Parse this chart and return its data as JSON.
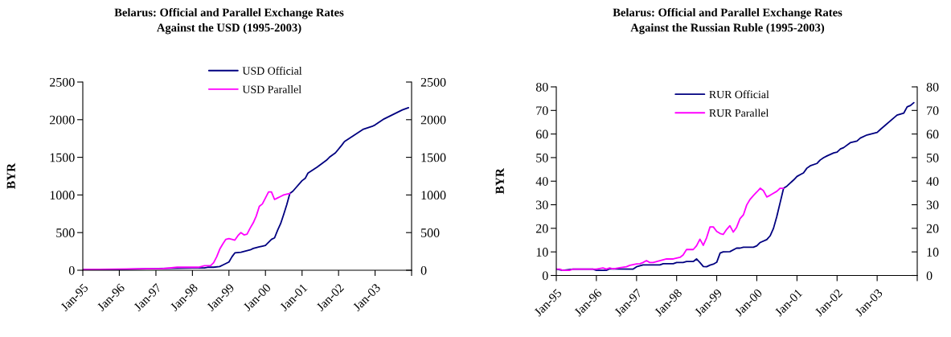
{
  "chart_data": [
    {
      "type": "line",
      "title": "Belarus: Official and Parallel Exchange Rates\nAgainst the USD (1995-2003)",
      "ylabel": "BYR",
      "legend": "top",
      "xlim": [
        "1995-01",
        "2004-01"
      ],
      "xticks": [
        {
          "value": "1995-01",
          "label": "Jan-95"
        },
        {
          "value": "1996-01",
          "label": "Jan-96"
        },
        {
          "value": "1997-01",
          "label": "Jan-97"
        },
        {
          "value": "1998-01",
          "label": "Jan-98"
        },
        {
          "value": "1999-01",
          "label": "Jan-99"
        },
        {
          "value": "2000-01",
          "label": "Jan-00"
        },
        {
          "value": "2001-01",
          "label": "Jan-01"
        },
        {
          "value": "2002-01",
          "label": "Jan-02"
        },
        {
          "value": "2003-01",
          "label": "Jan-03"
        },
        {
          "value": "2004-01",
          "label": null
        }
      ],
      "ylim": [
        0,
        2500
      ],
      "yticks": [
        0,
        500,
        1000,
        1500,
        2000,
        2500
      ],
      "y2lim": [
        0,
        2500
      ],
      "y2ticks": [
        0,
        500,
        1000,
        1500,
        2000,
        2500
      ],
      "series": [
        {
          "name": "USD Official",
          "color": "#000080",
          "x": [
            "1995-01",
            "1996-01",
            "1996-10",
            "1998-01",
            "1998-05",
            "1998-06",
            "1998-08",
            "1998-10",
            "1998-11",
            "1999-01",
            "1999-02",
            "1999-03",
            "1999-05",
            "1999-08",
            "1999-09",
            "1999-11",
            "1999-12",
            "2000-01",
            "2000-03",
            "2000-04",
            "2000-05",
            "2000-06",
            "2000-07",
            "2000-08",
            "2000-09",
            "2000-10",
            "2001-01",
            "2001-02",
            "2001-03",
            "2001-06",
            "2001-09",
            "2001-10",
            "2001-12",
            "2002-02",
            "2002-03",
            "2002-06",
            "2002-09",
            "2002-12",
            "2003-01",
            "2003-04",
            "2003-06",
            "2003-08",
            "2003-10",
            "2003-12"
          ],
          "values": [
            10,
            10,
            20,
            30,
            30,
            40,
            40,
            50,
            70,
            110,
            180,
            230,
            240,
            270,
            290,
            310,
            320,
            330,
            410,
            430,
            530,
            620,
            740,
            870,
            1020,
            1050,
            1190,
            1220,
            1290,
            1370,
            1460,
            1500,
            1560,
            1660,
            1710,
            1790,
            1870,
            1910,
            1930,
            2010,
            2050,
            2090,
            2130,
            2160
          ]
        },
        {
          "name": "USD Parallel",
          "color": "#ff00ff",
          "x": [
            "1995-01",
            "1996-10",
            "1997-03",
            "1997-08",
            "1998-03",
            "1998-05",
            "1998-07",
            "1998-08",
            "1998-09",
            "1998-10",
            "1998-11",
            "1998-12",
            "1999-01",
            "1999-02",
            "1999-03",
            "1999-04",
            "1999-05",
            "1999-06",
            "1999-07",
            "1999-08",
            "1999-09",
            "1999-10",
            "1999-11",
            "1999-12",
            "2000-01",
            "2000-02",
            "2000-03",
            "2000-04",
            "2000-05",
            "2000-06",
            "2000-07",
            "2000-08",
            "2000-09"
          ],
          "values": [
            10,
            20,
            20,
            40,
            40,
            60,
            60,
            100,
            180,
            280,
            350,
            410,
            420,
            410,
            400,
            460,
            500,
            470,
            480,
            560,
            630,
            720,
            850,
            880,
            960,
            1040,
            1040,
            940,
            960,
            980,
            1000,
            1010,
            1020
          ]
        }
      ]
    },
    {
      "type": "line",
      "title": "Belarus: Official and Parallel Exchange Rates\nAgainst the Russian Ruble (1995-2003)",
      "ylabel": "BYR",
      "legend": "top",
      "xlim": [
        "1995-01",
        "2004-01"
      ],
      "xticks": [
        {
          "value": "1995-01",
          "label": "Jan-95"
        },
        {
          "value": "1996-01",
          "label": "Jan-96"
        },
        {
          "value": "1997-01",
          "label": "Jan-97"
        },
        {
          "value": "1998-01",
          "label": "Jan-98"
        },
        {
          "value": "1999-01",
          "label": "Jan-99"
        },
        {
          "value": "2000-01",
          "label": "Jan-00"
        },
        {
          "value": "2001-01",
          "label": "Jan-01"
        },
        {
          "value": "2002-01",
          "label": "Jan-02"
        },
        {
          "value": "2003-01",
          "label": "Jan-03"
        },
        {
          "value": "2004-01",
          "label": null
        }
      ],
      "ylim": [
        0,
        80
      ],
      "yticks": [
        0,
        10,
        20,
        30,
        40,
        50,
        60,
        70,
        80
      ],
      "y2lim": [
        0,
        80
      ],
      "y2ticks": [
        0,
        10,
        20,
        30,
        40,
        50,
        60,
        70,
        80
      ],
      "series": [
        {
          "name": "RUR Official",
          "color": "#000080",
          "x": [
            "1995-01",
            "1995-03",
            "1995-06",
            "1995-12",
            "1996-01",
            "1996-04",
            "1996-05",
            "1996-12",
            "1997-01",
            "1997-03",
            "1997-08",
            "1997-09",
            "1997-12",
            "1998-01",
            "1998-03",
            "1998-04",
            "1998-06",
            "1998-07",
            "1998-08",
            "1998-09",
            "1998-10",
            "1998-11",
            "1998-12",
            "1999-01",
            "1999-02",
            "1999-03",
            "1999-05",
            "1999-07",
            "1999-08",
            "1999-09",
            "1999-12",
            "2000-01",
            "2000-02",
            "2000-04",
            "2000-05",
            "2000-06",
            "2000-07",
            "2000-08",
            "2000-09",
            "2000-10",
            "2000-12",
            "2001-01",
            "2001-02",
            "2001-03",
            "2001-04",
            "2001-05",
            "2001-07",
            "2001-08",
            "2001-09",
            "2001-10",
            "2001-12",
            "2002-01",
            "2002-02",
            "2002-03",
            "2002-05",
            "2002-07",
            "2002-08",
            "2002-10",
            "2003-01",
            "2003-02",
            "2003-07",
            "2003-09",
            "2003-10",
            "2003-11",
            "2003-12"
          ],
          "values": [
            2.7,
            2.2,
            2.7,
            2.7,
            2.2,
            2.2,
            2.8,
            2.7,
            3.7,
            4.5,
            4.5,
            5.0,
            5.0,
            5.5,
            5.5,
            5.9,
            5.9,
            7.0,
            5.5,
            3.8,
            3.7,
            4.4,
            4.8,
            5.6,
            9.5,
            10.0,
            10.1,
            11.6,
            11.6,
            12.0,
            12.0,
            12.6,
            14.0,
            15.2,
            16.8,
            20.0,
            25.0,
            31.0,
            37.0,
            37.9,
            40.5,
            42.0,
            42.8,
            43.5,
            45.5,
            46.5,
            47.5,
            49.0,
            50.0,
            50.7,
            52.0,
            52.3,
            53.7,
            54.2,
            56.3,
            57.0,
            58.3,
            59.6,
            60.7,
            62.0,
            68.0,
            68.9,
            71.5,
            72.1,
            73.3
          ]
        },
        {
          "name": "RUR Parallel",
          "color": "#ff00ff",
          "x": [
            "1995-01",
            "1995-02",
            "1995-03",
            "1995-05",
            "1995-06",
            "1996-01",
            "1996-03",
            "1996-04",
            "1996-05",
            "1996-06",
            "1996-08",
            "1996-10",
            "1996-11",
            "1997-01",
            "1997-02",
            "1997-03",
            "1997-04",
            "1997-05",
            "1997-06",
            "1997-10",
            "1997-12",
            "1998-02",
            "1998-03",
            "1998-04",
            "1998-06",
            "1998-07",
            "1998-08",
            "1998-09",
            "1998-10",
            "1998-11",
            "1998-12",
            "1999-01",
            "1999-02",
            "1999-03",
            "1999-04",
            "1999-05",
            "1999-06",
            "1999-07",
            "1999-08",
            "1999-09",
            "1999-10",
            "1999-11",
            "1999-12",
            "2000-01",
            "2000-02",
            "2000-03",
            "2000-04",
            "2000-05",
            "2000-06",
            "2000-07",
            "2000-08",
            "2000-09"
          ],
          "values": [
            2.7,
            2.7,
            2.2,
            2.2,
            2.7,
            2.7,
            3.2,
            2.7,
            3.2,
            2.8,
            3.3,
            3.7,
            4.3,
            4.9,
            5.0,
            5.5,
            6.3,
            5.5,
            5.5,
            7.0,
            7.0,
            7.7,
            8.7,
            11.0,
            11.0,
            12.6,
            15.4,
            12.8,
            16.0,
            20.6,
            20.6,
            18.7,
            17.8,
            17.4,
            19.5,
            21.1,
            18.4,
            20.4,
            24.1,
            25.7,
            29.9,
            32.3,
            33.9,
            35.4,
            37.0,
            36.0,
            33.3,
            34.0,
            34.9,
            35.7,
            37.0,
            37.0
          ]
        }
      ]
    }
  ]
}
